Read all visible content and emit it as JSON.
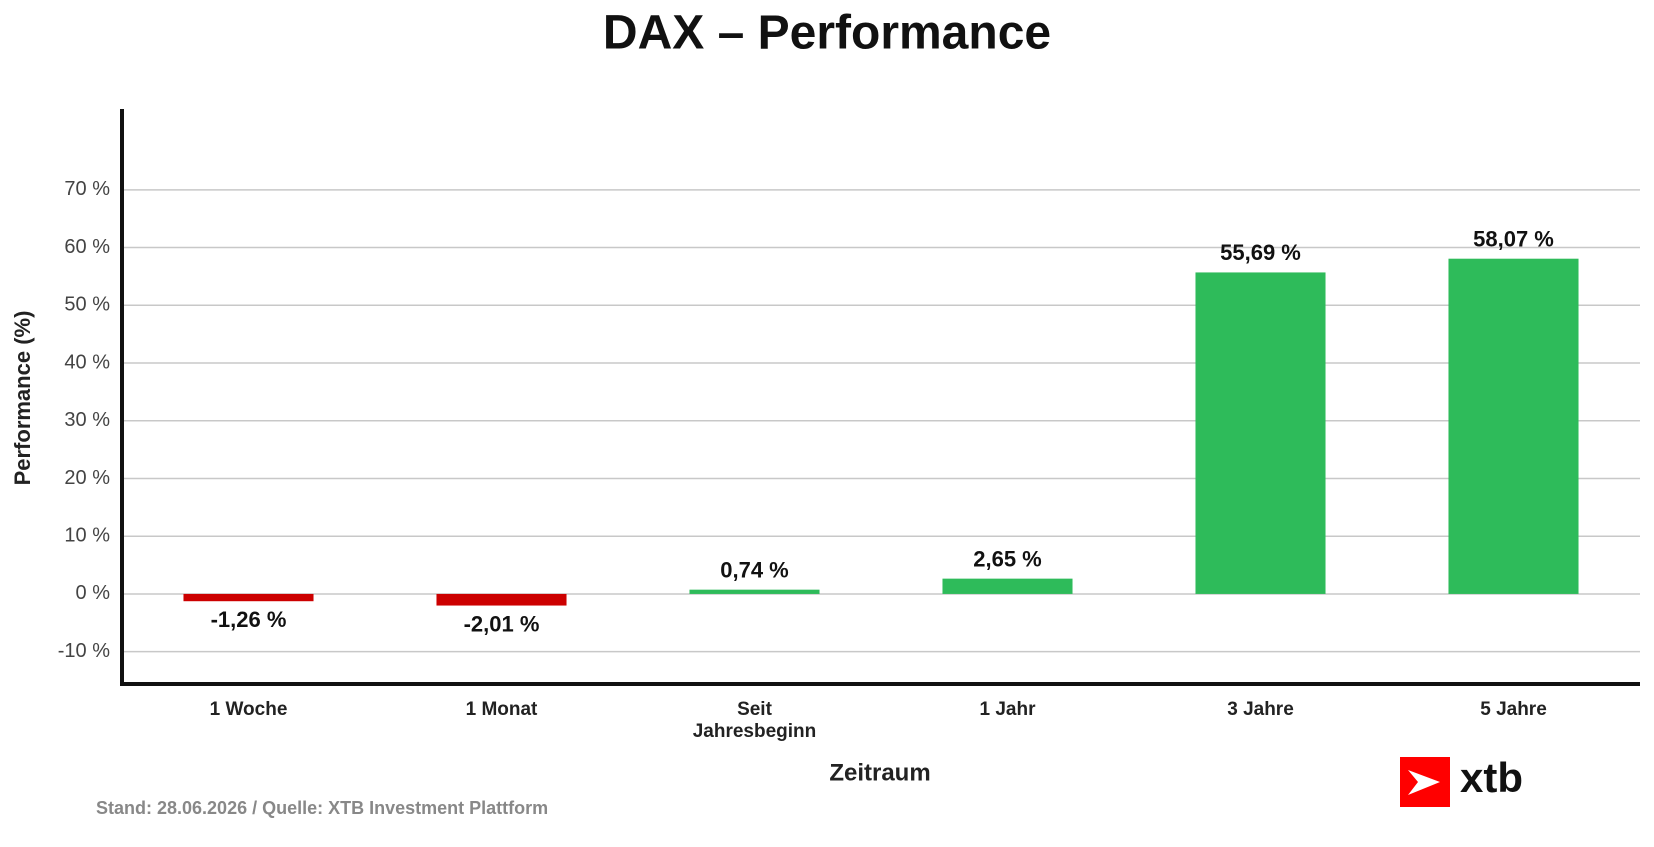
{
  "chart_data": {
    "type": "bar",
    "title": "DAX – Performance",
    "categories": [
      "1 Woche",
      "1 Monat",
      "Seit\nJahresbeginn",
      "1 Jahr",
      "3 Jahre",
      "5 Jahre"
    ],
    "values": [
      -1.26,
      -2.01,
      0.74,
      2.65,
      55.69,
      58.07
    ],
    "value_labels": [
      "-1,26 %",
      "-2,01 %",
      "0,74 %",
      "2,65 %",
      "55,69 %",
      "58,07 %"
    ],
    "colors": [
      "#cc0000",
      "#cc0000",
      "#2ebb5a",
      "#2ebb5a",
      "#2ebb5a",
      "#2ebb5a"
    ],
    "ylim": [
      -15.6,
      84
    ],
    "yticks": [
      {
        "value": -10,
        "label": "-10 %"
      },
      {
        "value": 0,
        "label": "0 %"
      },
      {
        "value": 10,
        "label": "10 %"
      },
      {
        "value": 20,
        "label": "20 %"
      },
      {
        "value": 30,
        "label": "30 %"
      },
      {
        "value": 40,
        "label": "40 %"
      },
      {
        "value": 50,
        "label": "50 %"
      },
      {
        "value": 60,
        "label": "60 %"
      },
      {
        "value": 70,
        "label": "70 %"
      }
    ],
    "ylabel": "Performance (%)",
    "xlabel": "Zeitraum",
    "grid": true,
    "footer": "Stand: 28.06.2026 / Quelle: XTB Investment Plattform",
    "logo": "xtb"
  }
}
